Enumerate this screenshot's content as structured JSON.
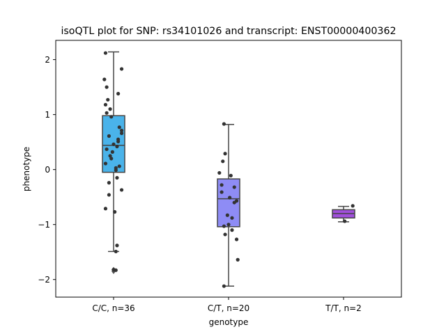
{
  "chart_data": {
    "type": "box",
    "title": "isoQTL plot for SNP: rs34101026 and transcript: ENST00000400362",
    "xlabel": "genotype",
    "ylabel": "phenotype",
    "ylim": [
      -2.32,
      2.35
    ],
    "yticks": [
      2,
      1,
      0,
      -1,
      -2
    ],
    "ytick_labels": [
      "2",
      "1",
      "0",
      "−1",
      "−2"
    ],
    "grid": false,
    "legend": "none",
    "categories": [
      "C/C, n=36",
      "C/T, n=20",
      "T/T, n=2"
    ],
    "boxes": [
      {
        "category": "C/C, n=36",
        "color": "#4ab3ea",
        "q1": -0.05,
        "median": 0.44,
        "q3": 0.98,
        "whisker_low": -1.49,
        "whisker_high": 2.14,
        "outliers": [
          -1.85,
          -1.82
        ]
      },
      {
        "category": "C/T, n=20",
        "color": "#8e8cf5",
        "q1": -1.04,
        "median": -0.53,
        "q3": -0.17,
        "whisker_low": -2.12,
        "whisker_high": 0.82,
        "outliers": []
      },
      {
        "category": "T/T, n=2",
        "color": "#a150dc",
        "q1": -0.88,
        "median": -0.8,
        "q3": -0.73,
        "whisker_low": -0.95,
        "whisker_high": -0.67,
        "outliers": []
      }
    ],
    "points": [
      [
        {
          "dx": -0.07,
          "y": 2.12
        },
        {
          "dx": -0.08,
          "y": 1.64
        },
        {
          "dx": 0.07,
          "y": 1.83
        },
        {
          "dx": -0.06,
          "y": 1.5
        },
        {
          "dx": 0.04,
          "y": 1.38
        },
        {
          "dx": -0.05,
          "y": 1.27
        },
        {
          "dx": -0.07,
          "y": 1.18
        },
        {
          "dx": -0.03,
          "y": 1.1
        },
        {
          "dx": -0.06,
          "y": 1.03
        },
        {
          "dx": -0.02,
          "y": 0.96
        },
        {
          "dx": 0.05,
          "y": 0.77
        },
        {
          "dx": 0.07,
          "y": 0.71
        },
        {
          "dx": 0.07,
          "y": 0.66
        },
        {
          "dx": -0.04,
          "y": 0.61
        },
        {
          "dx": 0.04,
          "y": 0.55
        },
        {
          "dx": 0.04,
          "y": 0.51
        },
        {
          "dx": 0.0,
          "y": 0.46
        },
        {
          "dx": 0.03,
          "y": 0.42
        },
        {
          "dx": -0.06,
          "y": 0.37
        },
        {
          "dx": -0.01,
          "y": 0.32
        },
        {
          "dx": -0.03,
          "y": 0.25
        },
        {
          "dx": -0.02,
          "y": 0.2
        },
        {
          "dx": -0.07,
          "y": 0.11
        },
        {
          "dx": 0.05,
          "y": 0.06
        },
        {
          "dx": 0.02,
          "y": 0.03
        },
        {
          "dx": 0.02,
          "y": -0.01
        },
        {
          "dx": 0.03,
          "y": -0.15
        },
        {
          "dx": -0.04,
          "y": -0.24
        },
        {
          "dx": 0.07,
          "y": -0.37
        },
        {
          "dx": -0.04,
          "y": -0.46
        },
        {
          "dx": -0.07,
          "y": -0.71
        },
        {
          "dx": 0.01,
          "y": -0.77
        },
        {
          "dx": 0.03,
          "y": -1.38
        },
        {
          "dx": 0.02,
          "y": -1.49
        },
        {
          "dx": 0.0,
          "y": -1.82
        },
        {
          "dx": 0.02,
          "y": -1.83
        }
      ],
      [
        {
          "dx": -0.04,
          "y": 0.83
        },
        {
          "dx": -0.03,
          "y": 0.29
        },
        {
          "dx": -0.05,
          "y": 0.15
        },
        {
          "dx": -0.08,
          "y": -0.06
        },
        {
          "dx": 0.02,
          "y": -0.11
        },
        {
          "dx": -0.06,
          "y": -0.28
        },
        {
          "dx": 0.05,
          "y": -0.32
        },
        {
          "dx": -0.06,
          "y": -0.41
        },
        {
          "dx": 0.01,
          "y": -0.51
        },
        {
          "dx": 0.07,
          "y": -0.57
        },
        {
          "dx": 0.05,
          "y": -0.6
        },
        {
          "dx": -0.01,
          "y": -0.83
        },
        {
          "dx": 0.03,
          "y": -0.88
        },
        {
          "dx": -0.04,
          "y": -1.03
        },
        {
          "dx": 0.03,
          "y": -1.1
        },
        {
          "dx": -0.03,
          "y": -1.18
        },
        {
          "dx": 0.07,
          "y": -1.27
        },
        {
          "dx": 0.08,
          "y": -1.64
        },
        {
          "dx": -0.04,
          "y": -2.12
        },
        {
          "dx": 0.0,
          "y": -1.0
        }
      ],
      [
        {
          "dx": 0.08,
          "y": -0.66
        },
        {
          "dx": 0.01,
          "y": -0.94
        }
      ]
    ]
  }
}
